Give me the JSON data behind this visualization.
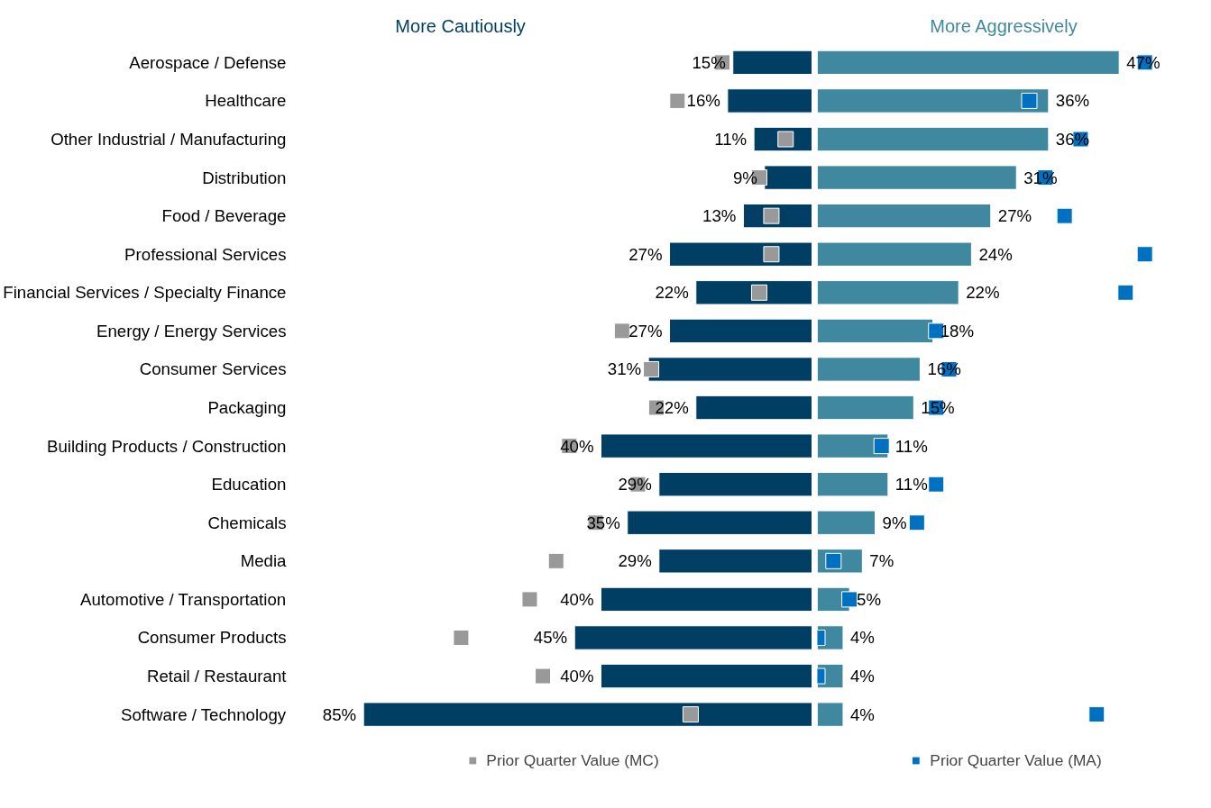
{
  "chart_data": [
    {
      "type": "bar",
      "orientation": "horizontal",
      "categories": [
        "Aerospace / Defense",
        "Healthcare",
        "Other Industrial / Manufacturing",
        "Distribution",
        "Food / Beverage",
        "Professional Services",
        "Financial Services / Specialty Finance",
        "Energy / Energy Services",
        "Consumer Services",
        "Packaging",
        "Building Products / Construction",
        "Education",
        "Chemicals",
        "Media",
        "Automotive / Transportation",
        "Consumer Products",
        "Retail / Restaurant",
        "Software / Technology"
      ],
      "series": [
        {
          "name": "More Cautiously",
          "color": "#003f63",
          "values": [
            15,
            16,
            11,
            9,
            13,
            27,
            22,
            27,
            31,
            22,
            40,
            29,
            35,
            29,
            40,
            45,
            40,
            85
          ],
          "value_labels": [
            "15%",
            "16%",
            "11%",
            "9%",
            "13%",
            "27%",
            "22%",
            "27%",
            "31%",
            "22%",
            "40%",
            "29%",
            "35%",
            "29%",
            "40%",
            "45%",
            "40%",
            "85%"
          ]
        },
        {
          "name": "Prior Quarter Value (MC)",
          "type": "scatter",
          "marker": "square",
          "color": "#999999",
          "values": [
            17,
            25.5,
            5,
            10,
            7.7,
            7.7,
            10,
            36,
            30.5,
            29.5,
            46,
            33,
            41,
            48.5,
            53.5,
            66.5,
            51,
            23
          ]
        }
      ],
      "tick_labels": "y",
      "legend": "bottom"
    },
    {
      "type": "bar",
      "orientation": "horizontal",
      "categories": [
        null,
        null,
        null,
        null,
        null,
        null,
        null,
        null,
        null,
        null,
        null,
        null,
        null,
        null,
        null,
        null,
        null,
        null
      ],
      "series": [
        {
          "name": "More Aggressively",
          "color": "#3f88a0",
          "values": [
            47,
            36,
            36,
            31,
            27,
            24,
            22,
            18,
            16,
            15,
            11,
            11,
            9,
            7,
            5,
            4,
            4,
            4
          ],
          "value_labels": [
            "47%",
            "36%",
            "36%",
            "31%",
            "27%",
            "24%",
            "22%",
            "18%",
            "16%",
            "15%",
            "11%",
            "11%",
            "9%",
            "7%",
            "5%",
            "4%",
            "4%",
            "4%"
          ]
        },
        {
          "name": "Prior Quarter Value (MA)",
          "type": "scatter",
          "marker": "square",
          "color": "#0070c0",
          "values": [
            51,
            33,
            41,
            35.5,
            38.5,
            51,
            48,
            18.5,
            20.5,
            18.5,
            10,
            18.5,
            15.5,
            2.5,
            5,
            0,
            0,
            43.5
          ]
        }
      ],
      "tick_labels": "y",
      "legend": "bottom"
    }
  ]
}
